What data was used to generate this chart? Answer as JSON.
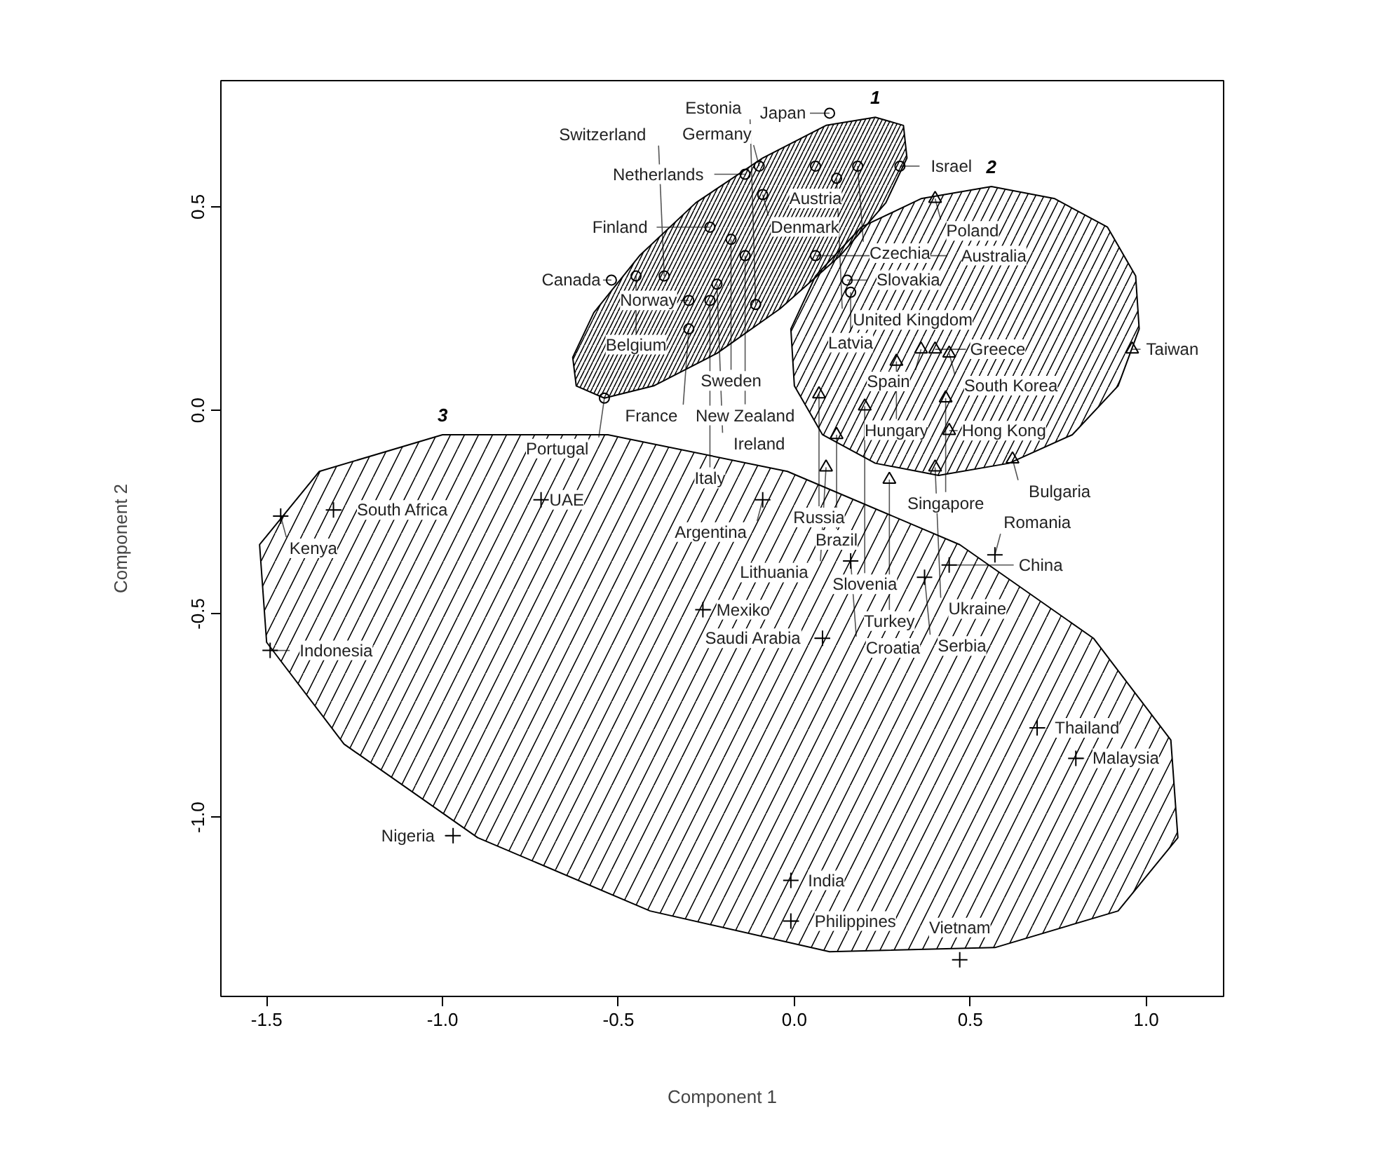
{
  "chart_data": {
    "type": "scatter",
    "xlabel": "Component 1",
    "ylabel": "Component 2",
    "grid": false,
    "xlim": [
      -1.63,
      1.22
    ],
    "ylim": [
      -1.44,
      0.81
    ],
    "xticks": [
      {
        "value": -1.5,
        "label": "-1.5"
      },
      {
        "value": -1,
        "label": "-1.0"
      },
      {
        "value": -0.5,
        "label": "-0.5"
      },
      {
        "value": 0,
        "label": "0.0"
      },
      {
        "value": 0.5,
        "label": "0.5"
      },
      {
        "value": 1,
        "label": "1.0"
      }
    ],
    "yticks": [
      {
        "value": -1,
        "label": "-1.0"
      },
      {
        "value": -0.5,
        "label": "-0.5"
      },
      {
        "value": 0,
        "label": "0.0"
      },
      {
        "value": 0.5,
        "label": "0.5"
      }
    ],
    "series": [
      {
        "type": "area",
        "name": "1",
        "color": "#000000",
        "x": [
          0.31,
          0.32,
          0.26,
          0.13,
          -0.04,
          -0.22,
          -0.4,
          -0.54,
          -0.62,
          -0.63,
          -0.57,
          -0.44,
          -0.28,
          -0.09,
          0.09,
          0.23
        ],
        "values": [
          0.7,
          0.62,
          0.51,
          0.38,
          0.25,
          0.14,
          0.06,
          0.03,
          0.06,
          0.13,
          0.24,
          0.38,
          0.51,
          0.62,
          0.7,
          0.72
        ]
      },
      {
        "type": "area",
        "name": "2",
        "color": "#000000",
        "x": [
          0.97,
          0.98,
          0.92,
          0.79,
          0.61,
          0.41,
          0.23,
          0.08,
          0.0,
          -0.01,
          0.06,
          0.19,
          0.36,
          0.56,
          0.74,
          0.89
        ],
        "values": [
          0.33,
          0.2,
          0.06,
          -0.06,
          -0.13,
          -0.16,
          -0.13,
          -0.06,
          0.06,
          0.2,
          0.33,
          0.45,
          0.52,
          0.55,
          0.52,
          0.45
        ]
      },
      {
        "type": "area",
        "name": "3",
        "color": "#000000",
        "x": [
          1.09,
          0.92,
          0.57,
          0.1,
          -0.41,
          -0.9,
          -1.28,
          -1.5,
          -1.52,
          -1.35,
          -1.0,
          -0.53,
          -0.02,
          0.47,
          0.85,
          1.07
        ],
        "values": [
          -1.05,
          -1.23,
          -1.32,
          -1.33,
          -1.23,
          -1.05,
          -0.82,
          -0.57,
          -0.33,
          -0.15,
          -0.06,
          -0.06,
          -0.15,
          -0.33,
          -0.56,
          -0.81
        ]
      },
      {
        "marker": "circle",
        "color": "#000000",
        "x": [
          0.1,
          -0.1,
          0.06,
          0.18,
          0.3,
          -0.14,
          0.12,
          -0.09,
          -0.24,
          -0.18,
          -0.14,
          0.06,
          -0.52,
          -0.45,
          -0.37,
          -0.22,
          -0.3,
          -0.24,
          -0.11,
          -0.3,
          -0.54,
          0.15,
          0.16
        ],
        "values": [
          0.73,
          0.6,
          0.6,
          0.6,
          0.6,
          0.58,
          0.57,
          0.53,
          0.45,
          0.42,
          0.38,
          0.38,
          0.32,
          0.33,
          0.33,
          0.31,
          0.27,
          0.27,
          0.26,
          0.2,
          0.03,
          0.32,
          0.29
        ]
      },
      {
        "marker": "triangle",
        "color": "#000000",
        "x": [
          0.4,
          0.36,
          0.4,
          0.44,
          0.29,
          0.96,
          0.07,
          0.2,
          0.43,
          0.12,
          0.44,
          0.62,
          0.09,
          0.27,
          0.4
        ],
        "values": [
          0.52,
          0.15,
          0.15,
          0.14,
          0.12,
          0.15,
          0.04,
          0.01,
          0.03,
          -0.06,
          -0.05,
          -0.12,
          -0.14,
          -0.17,
          -0.14
        ]
      },
      {
        "marker": "cross",
        "color": "#000000",
        "x": [
          -1.46,
          -1.31,
          -0.72,
          -1.49,
          -0.09,
          -0.26,
          0.16,
          0.37,
          0.44,
          0.57,
          0.08,
          0.69,
          0.8,
          -0.97,
          -0.01,
          -0.01,
          0.47
        ],
        "values": [
          -0.26,
          -0.245,
          -0.22,
          -0.59,
          -0.22,
          -0.49,
          -0.37,
          -0.41,
          -0.38,
          -0.355,
          -0.56,
          -0.78,
          -0.855,
          -1.045,
          -1.155,
          -1.255,
          -1.35
        ]
      }
    ],
    "annotations": [
      {
        "text": "Japan",
        "x": 0.1,
        "y": 0.73
      },
      {
        "text": "Germany",
        "x": -0.1,
        "y": 0.6
      },
      {
        "text": "Austria",
        "x": 0.06,
        "y": 0.6
      },
      {
        "text": "Czechia",
        "x": 0.18,
        "y": 0.6
      },
      {
        "text": "Israel",
        "x": 0.3,
        "y": 0.6
      },
      {
        "text": "Netherlands",
        "x": -0.14,
        "y": 0.58
      },
      {
        "text": "United Kingdom",
        "x": 0.12,
        "y": 0.57
      },
      {
        "text": "Denmark",
        "x": -0.09,
        "y": 0.53
      },
      {
        "text": "Finland",
        "x": -0.24,
        "y": 0.45
      },
      {
        "text": "Sweden",
        "x": -0.18,
        "y": 0.42
      },
      {
        "text": "New Zealand",
        "x": -0.14,
        "y": 0.38
      },
      {
        "text": "Australia",
        "x": 0.06,
        "y": 0.38
      },
      {
        "text": "Canada",
        "x": -0.52,
        "y": 0.32
      },
      {
        "text": "Belgium",
        "x": -0.45,
        "y": 0.33
      },
      {
        "text": "Switzerland",
        "x": -0.37,
        "y": 0.33
      },
      {
        "text": "Ireland",
        "x": -0.22,
        "y": 0.31
      },
      {
        "text": "Norway",
        "x": -0.3,
        "y": 0.27
      },
      {
        "text": "Italy",
        "x": -0.24,
        "y": 0.27
      },
      {
        "text": "Estonia",
        "x": -0.11,
        "y": 0.26
      },
      {
        "text": "France",
        "x": -0.3,
        "y": 0.2
      },
      {
        "text": "Portugal",
        "x": -0.54,
        "y": 0.03
      },
      {
        "text": "Slovakia",
        "x": 0.15,
        "y": 0.32
      },
      {
        "text": "Latvia",
        "x": 0.16,
        "y": 0.29
      },
      {
        "text": "Poland",
        "x": 0.4,
        "y": 0.52
      },
      {
        "text": "Spain",
        "x": 0.36,
        "y": 0.15
      },
      {
        "text": "Greece",
        "x": 0.4,
        "y": 0.15
      },
      {
        "text": "South Korea",
        "x": 0.44,
        "y": 0.14
      },
      {
        "text": "Hungary",
        "x": 0.29,
        "y": 0.12
      },
      {
        "text": "Taiwan",
        "x": 0.96,
        "y": 0.15
      },
      {
        "text": "Russia",
        "x": 0.07,
        "y": 0.04
      },
      {
        "text": "Slovenia",
        "x": 0.2,
        "y": 0.01
      },
      {
        "text": "Singapore",
        "x": 0.43,
        "y": 0.03
      },
      {
        "text": "Brazil",
        "x": 0.12,
        "y": -0.06
      },
      {
        "text": "Hong Kong",
        "x": 0.44,
        "y": -0.05
      },
      {
        "text": "Bulgaria",
        "x": 0.62,
        "y": -0.12
      },
      {
        "text": "Lithuania",
        "x": 0.09,
        "y": -0.14
      },
      {
        "text": "Turkey",
        "x": 0.27,
        "y": -0.17
      },
      {
        "text": "Ukraine",
        "x": 0.4,
        "y": -0.14
      },
      {
        "text": "Kenya",
        "x": -1.46,
        "y": -0.26
      },
      {
        "text": "South Africa",
        "x": -1.31,
        "y": -0.245
      },
      {
        "text": "UAE",
        "x": -0.72,
        "y": -0.22
      },
      {
        "text": "Indonesia",
        "x": -1.49,
        "y": -0.59
      },
      {
        "text": "Argentina",
        "x": -0.09,
        "y": -0.22
      },
      {
        "text": "Mexiko",
        "x": -0.26,
        "y": -0.49
      },
      {
        "text": "Croatia",
        "x": 0.16,
        "y": -0.37
      },
      {
        "text": "Serbia",
        "x": 0.37,
        "y": -0.41
      },
      {
        "text": "China",
        "x": 0.44,
        "y": -0.38
      },
      {
        "text": "Romania",
        "x": 0.57,
        "y": -0.355
      },
      {
        "text": "Saudi Arabia",
        "x": 0.08,
        "y": -0.56
      },
      {
        "text": "Thailand",
        "x": 0.69,
        "y": -0.78
      },
      {
        "text": "Malaysia",
        "x": 0.8,
        "y": -0.855
      },
      {
        "text": "Nigeria",
        "x": -0.97,
        "y": -1.045
      },
      {
        "text": "India",
        "x": -0.01,
        "y": -1.155
      },
      {
        "text": "Philippines",
        "x": -0.01,
        "y": -1.255
      },
      {
        "text": "Vietnam",
        "x": 0.47,
        "y": -1.35
      }
    ]
  }
}
